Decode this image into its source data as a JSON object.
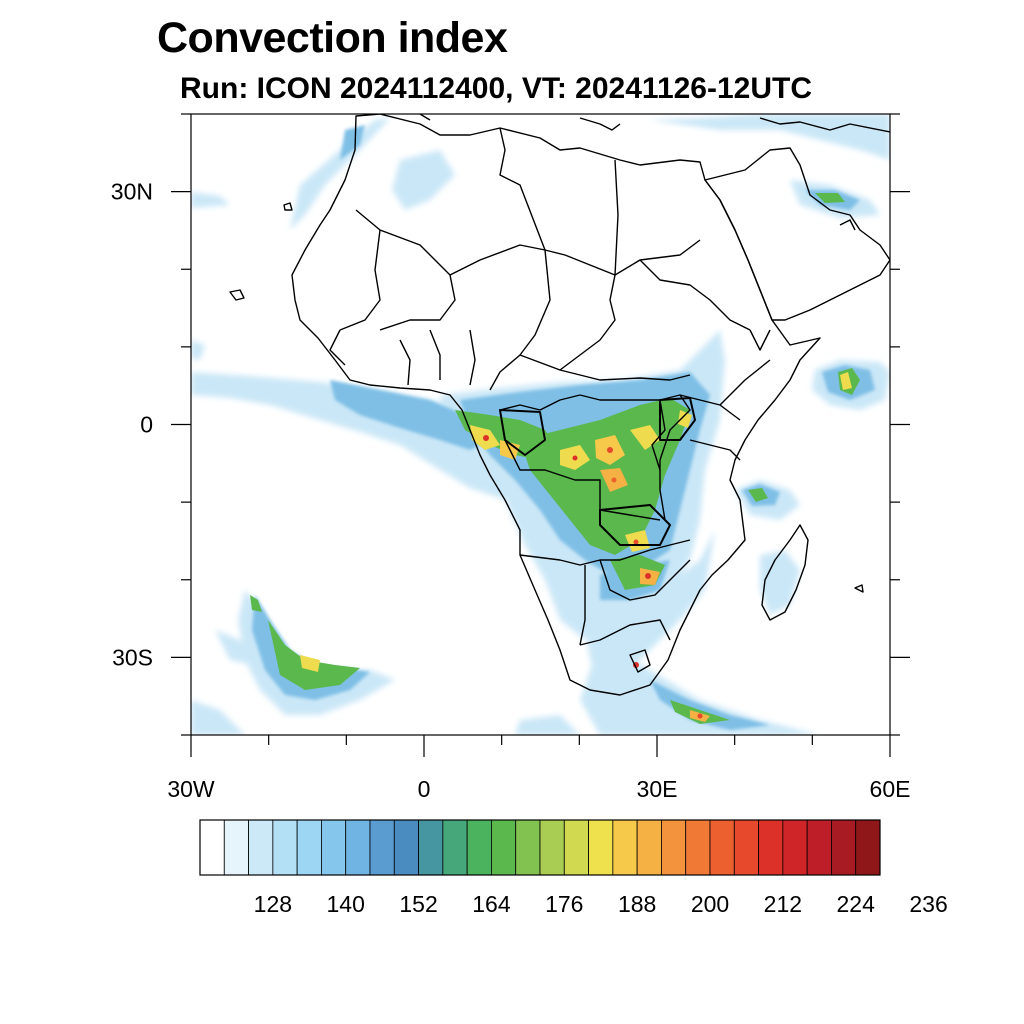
{
  "title": "Convection index",
  "subtitle": "Run: ICON 2024112400,  VT: 20241126-12UTC",
  "map": {
    "lon_range": [
      -30,
      60
    ],
    "lat_range": [
      -40,
      40
    ],
    "lon_ticks": [
      {
        "value": -30,
        "label": "30W"
      },
      {
        "value": 0,
        "label": "0"
      },
      {
        "value": 30,
        "label": "30E"
      },
      {
        "value": 60,
        "label": "60E"
      }
    ],
    "lat_ticks": [
      {
        "value": 30,
        "label": "30N"
      },
      {
        "value": 0,
        "label": "0"
      },
      {
        "value": -30,
        "label": "30S"
      }
    ],
    "minor_lon_step": 10,
    "minor_lat_step": 10
  },
  "colorbar": {
    "colors": [
      "#ffffff",
      "#e6f4fc",
      "#cbe9f7",
      "#b4e0f5",
      "#9dd6f3",
      "#84c6ec",
      "#6fb4e2",
      "#5a9bd0",
      "#4a8bc0",
      "#4596a0",
      "#46a77b",
      "#4bb35d",
      "#5ab84d",
      "#82c251",
      "#a9cd52",
      "#d0d94f",
      "#efe04e",
      "#f6c94a",
      "#f5b144",
      "#f4933e",
      "#f07936",
      "#ec5f2f",
      "#e6492b",
      "#dc3129",
      "#cf2428",
      "#be1e27",
      "#a91b23",
      "#8f1719"
    ],
    "tick_labels": [
      "128",
      "140",
      "152",
      "164",
      "176",
      "188",
      "200",
      "212",
      "224",
      "236"
    ]
  },
  "field_palette": {
    "light_blue": "#c8e6f7",
    "mid_blue": "#7fbfe6",
    "blue": "#4f96cc",
    "teal": "#3f9e8f",
    "green": "#5ab84d",
    "yellow": "#eedc4e",
    "orange": "#f59a3f",
    "red": "#dc3129"
  }
}
